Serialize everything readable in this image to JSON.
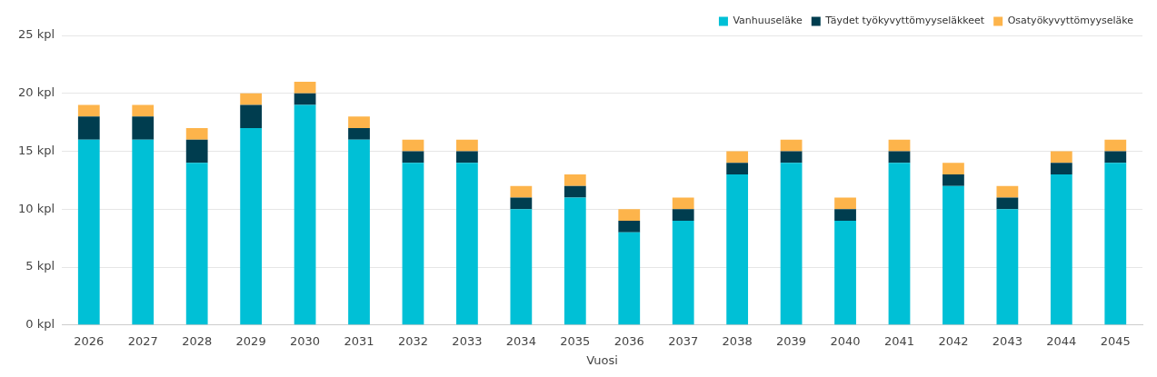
{
  "chart_data": {
    "type": "bar",
    "xlabel": "Vuosi",
    "stacked": true,
    "grid": "y",
    "legend": "top right",
    "categories": [
      "2026",
      "2027",
      "2028",
      "2029",
      "2030",
      "2031",
      "2032",
      "2033",
      "2034",
      "2035",
      "2036",
      "2037",
      "2038",
      "2039",
      "2040",
      "2041",
      "2042",
      "2043",
      "2044",
      "2045"
    ],
    "series": [
      {
        "name": "Vanhuuseläke",
        "color": "#00c0d6",
        "values": [
          16,
          16,
          14,
          17,
          19,
          16,
          14,
          14,
          10,
          11,
          8,
          9,
          13,
          14,
          9,
          14,
          12,
          10,
          13,
          14
        ]
      },
      {
        "name": "Täydet työkyvyttömyyseläkkeet",
        "color": "#003d4f",
        "values": [
          2,
          2,
          2,
          2,
          1,
          1,
          1,
          1,
          1,
          1,
          1,
          1,
          1,
          1,
          1,
          1,
          1,
          1,
          1,
          1
        ]
      },
      {
        "name": "Osatyökyvyttömyyseläke",
        "color": "#fdb44b",
        "values": [
          1,
          1,
          1,
          1,
          1,
          1,
          1,
          1,
          1,
          1,
          1,
          1,
          1,
          1,
          1,
          1,
          1,
          1,
          1,
          1
        ]
      }
    ],
    "ylim": [
      0,
      25
    ],
    "yticks": [
      {
        "value": 0,
        "label": "0 kpl"
      },
      {
        "value": 5,
        "label": "5 kpl"
      },
      {
        "value": 10,
        "label": "10 kpl"
      },
      {
        "value": 15,
        "label": "15 kpl"
      },
      {
        "value": 20,
        "label": "20 kpl"
      },
      {
        "value": 25,
        "label": "25 kpl"
      }
    ]
  }
}
